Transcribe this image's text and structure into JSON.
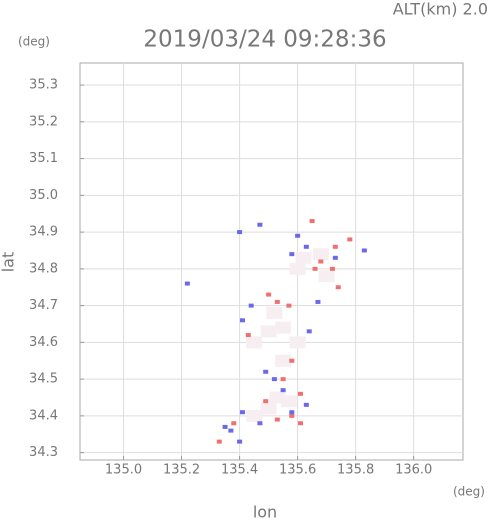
{
  "chart_data": {
    "type": "scatter",
    "title": "2019/03/24 09:28:36",
    "subtitle": "ALT(km) 2.0",
    "x_label": "lon",
    "y_label": "lat",
    "x_unit": "(deg)",
    "y_unit": "(deg)",
    "xlim": [
      134.85,
      136.17
    ],
    "ylim": [
      34.28,
      35.36
    ],
    "xticks": [
      {
        "value": 135.0,
        "label": "135.0"
      },
      135.2,
      135.4,
      135.6,
      135.8,
      {
        "value": 136.0,
        "label": "136.0"
      }
    ],
    "yticks": [
      34.3,
      34.4,
      34.5,
      34.6,
      34.7,
      34.8,
      34.9,
      {
        "value": 35.0,
        "label": "35.0"
      },
      35.1,
      35.2,
      35.3
    ],
    "grid": true,
    "series": [
      {
        "color": "#f7eef2",
        "x": [
          135.62,
          135.68,
          135.55,
          135.5,
          135.6,
          135.45,
          135.55,
          135.53,
          135.57,
          135.5,
          135.45,
          135.6,
          135.7,
          135.52
        ],
        "values": [
          34.83,
          34.84,
          34.64,
          34.63,
          34.6,
          34.6,
          34.55,
          34.45,
          34.44,
          34.42,
          34.4,
          34.8,
          34.78,
          34.68
        ]
      },
      {
        "color": "#f07070",
        "x": [
          135.65,
          135.78,
          135.73,
          135.68,
          135.74,
          135.53,
          135.5,
          135.57,
          135.43,
          135.58,
          135.55,
          135.61,
          135.49,
          135.58,
          135.53,
          135.38,
          135.33,
          135.61,
          135.72,
          135.66
        ],
        "values": [
          34.93,
          34.88,
          34.86,
          34.82,
          34.75,
          34.71,
          34.73,
          34.7,
          34.62,
          34.55,
          34.5,
          34.46,
          34.44,
          34.4,
          34.39,
          34.38,
          34.33,
          34.38,
          34.8,
          34.8
        ]
      },
      {
        "color": "#6a6ae8",
        "x": [
          135.4,
          135.47,
          135.58,
          135.63,
          135.73,
          135.83,
          135.22,
          135.44,
          135.41,
          135.64,
          135.52,
          135.49,
          135.55,
          135.63,
          135.41,
          135.37,
          135.47,
          135.58,
          135.4,
          135.35,
          135.67,
          135.6
        ],
        "values": [
          34.9,
          34.92,
          34.84,
          34.86,
          34.83,
          34.85,
          34.76,
          34.7,
          34.66,
          34.63,
          34.5,
          34.52,
          34.47,
          34.43,
          34.41,
          34.36,
          34.38,
          34.41,
          34.33,
          34.37,
          34.71,
          34.89
        ]
      }
    ]
  }
}
